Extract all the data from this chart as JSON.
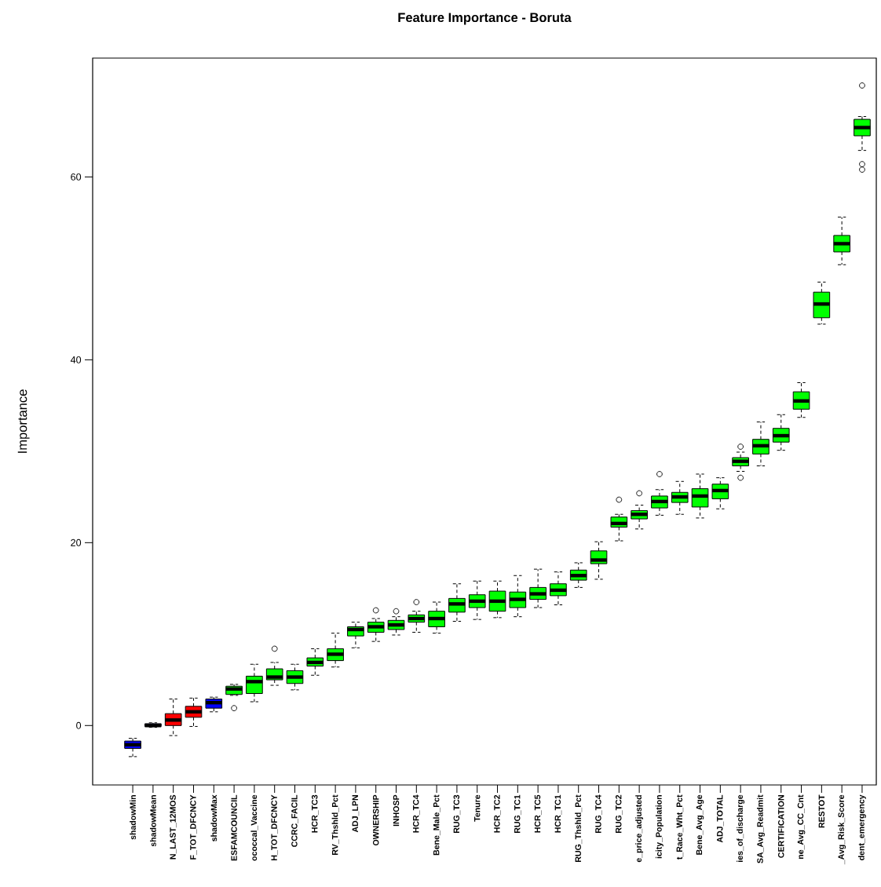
{
  "chart_data": {
    "type": "box",
    "title": "Feature Importance - Boruta",
    "ylabel": "Importance",
    "categories": [
      "shadowMin",
      "shadowMean",
      "N_LAST_12MOS",
      "F_TOT_DFCNCY",
      "shadowMax",
      "ESFAMCOUNCIL",
      "ococcal_Vaccine",
      "H_TOT_DFCNCY",
      "CCRC_FACIL",
      "HCR_TC3",
      "RV_Thshld_Pct",
      "ADJ_LPN",
      "OWNERSHIP",
      "INHOSP",
      "HCR_TC4",
      "Bene_Male_Pct",
      "RUG_TC3",
      "Tenure",
      "HCR_TC2",
      "RUG_TC1",
      "HCR_TC5",
      "HCR_TC1",
      "RUG_Thshld_Pct",
      "RUG_TC4",
      "RUG_TC2",
      "e_price_adjusted",
      "icity_Population",
      "t_Race_Wht_Pct",
      "Bene_Avg_Age",
      "ADJ_TOTAL",
      "ies_of_discharge",
      "SA_Avg_Readmit",
      "CERTIFICATION",
      "ne_Avg_CC_Cnt",
      "RESTOT",
      "_Avg_Risk_Score",
      "dent_emergency"
    ],
    "boxes": [
      {
        "low": -3.4,
        "q1": -2.5,
        "median": -2.1,
        "q3": -1.7,
        "high": -1.4
      },
      {
        "low": -0.2,
        "q1": -0.1,
        "median": 0.0,
        "q3": 0.2,
        "high": 0.3
      },
      {
        "low": -1.1,
        "q1": 0.0,
        "median": 0.6,
        "q3": 1.3,
        "high": 2.9
      },
      {
        "low": -0.1,
        "q1": 0.9,
        "median": 1.5,
        "q3": 2.1,
        "high": 3.0
      },
      {
        "low": 1.5,
        "q1": 1.9,
        "median": 2.5,
        "q3": 2.9,
        "high": 3.1
      },
      {
        "low": 3.3,
        "q1": 3.4,
        "median": 4.0,
        "q3": 4.3,
        "high": 4.5,
        "outliers": [
          1.9
        ]
      },
      {
        "low": 2.6,
        "q1": 3.5,
        "median": 4.8,
        "q3": 5.4,
        "high": 6.7
      },
      {
        "low": 4.4,
        "q1": 5.0,
        "median": 5.3,
        "q3": 6.2,
        "high": 6.9,
        "outliers": [
          8.4
        ]
      },
      {
        "low": 3.9,
        "q1": 4.6,
        "median": 5.3,
        "q3": 6.0,
        "high": 6.7
      },
      {
        "low": 5.5,
        "q1": 6.5,
        "median": 6.9,
        "q3": 7.4,
        "high": 8.4
      },
      {
        "low": 6.4,
        "q1": 7.1,
        "median": 7.8,
        "q3": 8.4,
        "high": 10.1
      },
      {
        "low": 8.5,
        "q1": 9.8,
        "median": 10.5,
        "q3": 10.8,
        "high": 11.3
      },
      {
        "low": 9.2,
        "q1": 10.2,
        "median": 10.8,
        "q3": 11.3,
        "high": 11.7,
        "outliers": [
          12.6
        ]
      },
      {
        "low": 9.9,
        "q1": 10.5,
        "median": 11.0,
        "q3": 11.5,
        "high": 11.9,
        "outliers": [
          12.5
        ]
      },
      {
        "low": 10.2,
        "q1": 11.3,
        "median": 11.7,
        "q3": 12.1,
        "high": 12.5,
        "outliers": [
          13.5
        ]
      },
      {
        "low": 10.1,
        "q1": 10.8,
        "median": 11.7,
        "q3": 12.5,
        "high": 13.5
      },
      {
        "low": 11.4,
        "q1": 12.4,
        "median": 13.3,
        "q3": 13.9,
        "high": 15.5
      },
      {
        "low": 11.6,
        "q1": 12.9,
        "median": 13.6,
        "q3": 14.3,
        "high": 15.8
      },
      {
        "low": 11.8,
        "q1": 12.5,
        "median": 13.6,
        "q3": 14.7,
        "high": 15.8
      },
      {
        "low": 11.9,
        "q1": 12.9,
        "median": 13.8,
        "q3": 14.6,
        "high": 16.4
      },
      {
        "low": 12.9,
        "q1": 13.8,
        "median": 14.4,
        "q3": 15.1,
        "high": 17.1
      },
      {
        "low": 13.2,
        "q1": 14.2,
        "median": 14.8,
        "q3": 15.5,
        "high": 16.8
      },
      {
        "low": 15.1,
        "q1": 15.9,
        "median": 16.4,
        "q3": 17.0,
        "high": 17.8
      },
      {
        "low": 16.0,
        "q1": 17.7,
        "median": 18.1,
        "q3": 19.1,
        "high": 20.1
      },
      {
        "low": 20.2,
        "q1": 21.7,
        "median": 22.1,
        "q3": 22.8,
        "high": 23.1,
        "outliers": [
          24.7
        ]
      },
      {
        "low": 21.5,
        "q1": 22.6,
        "median": 23.1,
        "q3": 23.5,
        "high": 24.1,
        "outliers": [
          25.4
        ]
      },
      {
        "low": 23.0,
        "q1": 23.8,
        "median": 24.5,
        "q3": 25.1,
        "high": 25.8,
        "outliers": [
          27.5
        ]
      },
      {
        "low": 23.1,
        "q1": 24.4,
        "median": 25.0,
        "q3": 25.5,
        "high": 26.7
      },
      {
        "low": 22.7,
        "q1": 23.9,
        "median": 25.1,
        "q3": 25.9,
        "high": 27.5
      },
      {
        "low": 23.7,
        "q1": 24.8,
        "median": 25.7,
        "q3": 26.4,
        "high": 27.1
      },
      {
        "low": 27.8,
        "q1": 28.4,
        "median": 28.9,
        "q3": 29.3,
        "high": 29.9,
        "outliers": [
          27.1,
          30.5
        ]
      },
      {
        "low": 28.4,
        "q1": 29.7,
        "median": 30.6,
        "q3": 31.3,
        "high": 33.2
      },
      {
        "low": 30.1,
        "q1": 31.0,
        "median": 31.7,
        "q3": 32.5,
        "high": 34.0
      },
      {
        "low": 33.7,
        "q1": 34.6,
        "median": 35.5,
        "q3": 36.5,
        "high": 37.5
      },
      {
        "low": 43.9,
        "q1": 44.6,
        "median": 46.1,
        "q3": 47.4,
        "high": 48.5
      },
      {
        "low": 50.4,
        "q1": 51.8,
        "median": 52.7,
        "q3": 53.6,
        "high": 55.6
      },
      {
        "low": 62.9,
        "q1": 64.5,
        "median": 65.4,
        "q3": 66.3,
        "high": 66.6,
        "outliers": [
          70.0,
          61.4,
          60.8
        ]
      }
    ],
    "colors": [
      "#0000ff",
      "#0000ff",
      "#ff0000",
      "#ff0000",
      "#0000ff",
      "#00ff00",
      "#00ff00",
      "#00ff00",
      "#00ff00",
      "#00ff00",
      "#00ff00",
      "#00ff00",
      "#00ff00",
      "#00ff00",
      "#00ff00",
      "#00ff00",
      "#00ff00",
      "#00ff00",
      "#00ff00",
      "#00ff00",
      "#00ff00",
      "#00ff00",
      "#00ff00",
      "#00ff00",
      "#00ff00",
      "#00ff00",
      "#00ff00",
      "#00ff00",
      "#00ff00",
      "#00ff00",
      "#00ff00",
      "#00ff00",
      "#00ff00",
      "#00ff00",
      "#00ff00",
      "#00ff00",
      "#00ff00"
    ],
    "ylim": [
      -6.5,
      73
    ],
    "yticks": [
      0,
      20,
      40,
      60
    ]
  }
}
